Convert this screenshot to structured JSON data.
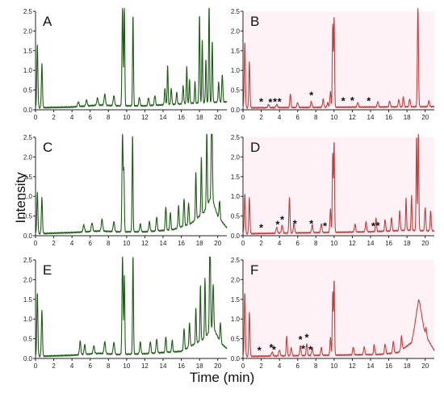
{
  "figure": {
    "ylabel": "Intensity",
    "xlabel": "Time (min)"
  },
  "colors": {
    "green": "#1e5c16",
    "red": "#c04040",
    "axis": "#222222",
    "star": "#111111"
  },
  "chart_data": [
    {
      "panel": "A",
      "type": "line",
      "color": "green",
      "xlim": [
        0,
        21
      ],
      "ylim": [
        0,
        2.5
      ],
      "xticks": [
        "0",
        "2",
        "4",
        "6",
        "8",
        "10",
        "12",
        "14",
        "16",
        "18",
        "20"
      ],
      "yticks": [
        "0.0",
        "0.5",
        "1.0",
        "1.5",
        "2.0",
        "2.5"
      ],
      "baseline": [
        [
          0,
          0.05
        ],
        [
          4,
          0.07
        ],
        [
          7,
          0.12
        ],
        [
          9,
          0.1
        ],
        [
          12,
          0.1
        ],
        [
          16,
          0.15
        ],
        [
          18,
          0.18
        ],
        [
          21,
          0.2
        ]
      ],
      "peaks": [
        [
          0.2,
          1.6,
          0.06
        ],
        [
          0.7,
          1.1,
          0.06
        ],
        [
          4.7,
          0.12,
          0.08
        ],
        [
          5.6,
          0.15,
          0.08
        ],
        [
          6.8,
          0.18,
          0.08
        ],
        [
          7.6,
          0.28,
          0.08
        ],
        [
          8.6,
          0.25,
          0.08
        ],
        [
          9.55,
          2.5,
          0.06
        ],
        [
          9.75,
          2.55,
          0.05
        ],
        [
          10.7,
          2.3,
          0.05
        ],
        [
          11.4,
          0.22,
          0.07
        ],
        [
          12.4,
          0.2,
          0.07
        ],
        [
          13.1,
          0.25,
          0.07
        ],
        [
          14.2,
          0.4,
          0.06
        ],
        [
          14.5,
          1.0,
          0.05
        ],
        [
          14.9,
          0.4,
          0.06
        ],
        [
          15.5,
          0.3,
          0.06
        ],
        [
          16.2,
          0.45,
          0.06
        ],
        [
          16.6,
          0.95,
          0.05
        ],
        [
          16.9,
          0.6,
          0.05
        ],
        [
          17.5,
          0.55,
          0.05
        ],
        [
          18.0,
          2.25,
          0.05
        ],
        [
          18.3,
          1.6,
          0.05
        ],
        [
          18.7,
          1.1,
          0.05
        ],
        [
          19.05,
          2.55,
          0.05
        ],
        [
          19.4,
          1.55,
          0.05
        ],
        [
          20.1,
          0.5,
          0.06
        ],
        [
          20.5,
          0.7,
          0.06
        ]
      ],
      "stars": []
    },
    {
      "panel": "B",
      "type": "line",
      "color": "red",
      "xlim": [
        0,
        21
      ],
      "ylim": [
        0,
        2.5
      ],
      "xticks": [
        "0",
        "2",
        "4",
        "6",
        "8",
        "10",
        "12",
        "14",
        "16",
        "18",
        "20"
      ],
      "yticks": [
        "0.0",
        "0.5",
        "1.0",
        "1.5",
        "2.0",
        "2.5"
      ],
      "baseline": [
        [
          0,
          0.05
        ],
        [
          21,
          0.08
        ]
      ],
      "peaks": [
        [
          0.2,
          1.65,
          0.06
        ],
        [
          0.7,
          1.15,
          0.06
        ],
        [
          2.8,
          0.08,
          0.08
        ],
        [
          3.7,
          0.08,
          0.08
        ],
        [
          5.2,
          0.35,
          0.06
        ],
        [
          6.0,
          0.12,
          0.08
        ],
        [
          7.5,
          0.15,
          0.07
        ],
        [
          8.8,
          0.2,
          0.07
        ],
        [
          9.3,
          0.12,
          0.07
        ],
        [
          9.6,
          0.4,
          0.06
        ],
        [
          9.85,
          2.1,
          0.05
        ],
        [
          10.0,
          2.3,
          0.05
        ],
        [
          12.6,
          0.12,
          0.07
        ],
        [
          14.8,
          0.14,
          0.07
        ],
        [
          16.1,
          0.15,
          0.07
        ],
        [
          17.1,
          0.18,
          0.07
        ],
        [
          17.6,
          0.26,
          0.06
        ],
        [
          18.3,
          0.2,
          0.07
        ],
        [
          19.2,
          2.55,
          0.06
        ],
        [
          20.4,
          0.15,
          0.07
        ]
      ],
      "stars": [
        2.0,
        3.0,
        3.5,
        4.0,
        7.5,
        11.0,
        12.0,
        13.8
      ]
    },
    {
      "panel": "C",
      "type": "line",
      "color": "green",
      "xlim": [
        0,
        21
      ],
      "ylim": [
        0,
        2.5
      ],
      "xticks": [
        "0",
        "2",
        "4",
        "6",
        "8",
        "10",
        "12",
        "14",
        "16",
        "18",
        "20"
      ],
      "yticks": [
        "0.0",
        "0.5",
        "1.0",
        "1.5",
        "2.0",
        "2.5"
      ],
      "baseline": [
        [
          0,
          0.05
        ],
        [
          4,
          0.08
        ],
        [
          7,
          0.12
        ],
        [
          9,
          0.1
        ],
        [
          12,
          0.1
        ],
        [
          15,
          0.15
        ],
        [
          17,
          0.3
        ],
        [
          18.5,
          0.6
        ],
        [
          19.3,
          1.0
        ],
        [
          20,
          0.5
        ],
        [
          21,
          0.2
        ]
      ],
      "peaks": [
        [
          0.2,
          1.05,
          0.06
        ],
        [
          0.7,
          0.9,
          0.06
        ],
        [
          5.3,
          0.18,
          0.08
        ],
        [
          6.2,
          0.22,
          0.08
        ],
        [
          7.3,
          0.3,
          0.08
        ],
        [
          8.6,
          0.25,
          0.08
        ],
        [
          9.55,
          2.5,
          0.06
        ],
        [
          9.7,
          1.5,
          0.05
        ],
        [
          10.65,
          2.45,
          0.05
        ],
        [
          11.5,
          0.2,
          0.07
        ],
        [
          12.5,
          0.25,
          0.07
        ],
        [
          13.3,
          0.35,
          0.07
        ],
        [
          14.3,
          0.6,
          0.06
        ],
        [
          14.8,
          0.45,
          0.06
        ],
        [
          15.7,
          0.55,
          0.06
        ],
        [
          16.3,
          0.7,
          0.06
        ],
        [
          16.8,
          0.55,
          0.06
        ],
        [
          17.6,
          1.2,
          0.05
        ],
        [
          18.2,
          1.45,
          0.05
        ],
        [
          18.8,
          2.0,
          0.05
        ],
        [
          19.35,
          2.55,
          0.06
        ],
        [
          20.2,
          0.45,
          0.06
        ]
      ],
      "stars": []
    },
    {
      "panel": "D",
      "type": "line",
      "color": "red",
      "xlim": [
        0,
        21
      ],
      "ylim": [
        0,
        2.5
      ],
      "xticks": [
        "0",
        "2",
        "4",
        "6",
        "8",
        "10",
        "12",
        "14",
        "16",
        "18",
        "20"
      ],
      "yticks": [
        "0.0",
        "0.5",
        "1.0",
        "1.5",
        "2.0",
        "2.5"
      ],
      "baseline": [
        [
          0,
          0.05
        ],
        [
          14,
          0.1
        ],
        [
          18,
          0.14
        ],
        [
          21,
          0.12
        ]
      ],
      "peaks": [
        [
          0.2,
          1.0,
          0.06
        ],
        [
          0.7,
          0.9,
          0.06
        ],
        [
          3.7,
          0.15,
          0.08
        ],
        [
          4.3,
          0.2,
          0.08
        ],
        [
          5.1,
          0.9,
          0.06
        ],
        [
          5.6,
          0.25,
          0.07
        ],
        [
          7.6,
          0.2,
          0.07
        ],
        [
          8.6,
          0.22,
          0.07
        ],
        [
          9.6,
          0.6,
          0.06
        ],
        [
          9.85,
          2.0,
          0.05
        ],
        [
          10.0,
          2.3,
          0.05
        ],
        [
          12.3,
          0.2,
          0.07
        ],
        [
          13.5,
          0.25,
          0.07
        ],
        [
          14.6,
          0.35,
          0.06
        ],
        [
          15.6,
          0.3,
          0.06
        ],
        [
          16.3,
          0.35,
          0.06
        ],
        [
          17.2,
          0.5,
          0.06
        ],
        [
          17.9,
          0.8,
          0.05
        ],
        [
          18.5,
          0.9,
          0.05
        ],
        [
          19.05,
          2.4,
          0.05
        ],
        [
          19.25,
          2.55,
          0.05
        ],
        [
          20.0,
          0.6,
          0.06
        ],
        [
          20.6,
          0.5,
          0.06
        ]
      ],
      "stars": [
        2.0,
        3.8,
        4.3,
        5.7,
        7.5,
        9.0,
        14.3,
        14.8
      ]
    },
    {
      "panel": "E",
      "type": "line",
      "color": "green",
      "xlim": [
        0,
        21
      ],
      "ylim": [
        0,
        2.5
      ],
      "xticks": [
        "0",
        "2",
        "4",
        "6",
        "8",
        "10",
        "12",
        "14",
        "16",
        "18",
        "20"
      ],
      "yticks": [
        "0.0",
        "0.5",
        "1.0",
        "1.5",
        "2.0",
        "2.5"
      ],
      "baseline": [
        [
          0,
          0.05
        ],
        [
          4,
          0.08
        ],
        [
          7,
          0.13
        ],
        [
          9,
          0.1
        ],
        [
          12,
          0.12
        ],
        [
          16,
          0.18
        ],
        [
          18.5,
          0.5
        ],
        [
          19.5,
          0.8
        ],
        [
          20.3,
          0.4
        ],
        [
          21,
          0.25
        ]
      ],
      "peaks": [
        [
          0.2,
          1.6,
          0.06
        ],
        [
          0.7,
          1.15,
          0.06
        ],
        [
          4.9,
          0.35,
          0.07
        ],
        [
          5.4,
          0.25,
          0.07
        ],
        [
          6.4,
          0.2,
          0.08
        ],
        [
          7.6,
          0.3,
          0.08
        ],
        [
          8.6,
          0.3,
          0.08
        ],
        [
          9.55,
          2.5,
          0.06
        ],
        [
          9.75,
          2.0,
          0.05
        ],
        [
          10.7,
          2.5,
          0.05
        ],
        [
          11.5,
          0.3,
          0.07
        ],
        [
          12.6,
          0.3,
          0.07
        ],
        [
          13.3,
          0.35,
          0.07
        ],
        [
          14.3,
          0.4,
          0.06
        ],
        [
          15.0,
          0.3,
          0.06
        ],
        [
          16.3,
          0.55,
          0.06
        ],
        [
          16.9,
          0.6,
          0.06
        ],
        [
          17.6,
          0.9,
          0.05
        ],
        [
          18.1,
          1.4,
          0.05
        ],
        [
          18.6,
          1.5,
          0.05
        ],
        [
          19.15,
          2.55,
          0.06
        ],
        [
          19.5,
          1.1,
          0.06
        ],
        [
          20.3,
          0.5,
          0.06
        ]
      ],
      "stars": []
    },
    {
      "panel": "F",
      "type": "line",
      "color": "red",
      "xlim": [
        0,
        21
      ],
      "ylim": [
        0,
        2.5
      ],
      "xticks": [
        "0",
        "2",
        "4",
        "6",
        "8",
        "10",
        "12",
        "14",
        "16",
        "18",
        "20"
      ],
      "yticks": [
        "0.0",
        "0.5",
        "1.0",
        "1.5",
        "2.0",
        "2.5"
      ],
      "baseline": [
        [
          0,
          0.05
        ],
        [
          15,
          0.1
        ],
        [
          17,
          0.15
        ],
        [
          18.5,
          0.4
        ],
        [
          19.3,
          1.2
        ],
        [
          20,
          0.6
        ],
        [
          21,
          0.2
        ]
      ],
      "peaks": [
        [
          0.2,
          1.6,
          0.06
        ],
        [
          0.7,
          1.1,
          0.06
        ],
        [
          3.2,
          0.1,
          0.08
        ],
        [
          4.0,
          0.15,
          0.08
        ],
        [
          4.8,
          0.5,
          0.06
        ],
        [
          5.3,
          0.2,
          0.07
        ],
        [
          6.3,
          0.25,
          0.07
        ],
        [
          7.0,
          0.3,
          0.07
        ],
        [
          7.6,
          0.2,
          0.07
        ],
        [
          8.6,
          0.2,
          0.07
        ],
        [
          9.6,
          0.45,
          0.06
        ],
        [
          9.85,
          1.6,
          0.05
        ],
        [
          10.0,
          1.9,
          0.05
        ],
        [
          12.1,
          0.2,
          0.07
        ],
        [
          13.3,
          0.2,
          0.07
        ],
        [
          14.4,
          0.25,
          0.07
        ],
        [
          15.6,
          0.25,
          0.07
        ],
        [
          16.5,
          0.3,
          0.07
        ],
        [
          17.4,
          0.35,
          0.07
        ],
        [
          19.3,
          0.3,
          0.3
        ],
        [
          20.1,
          0.2,
          0.07
        ]
      ],
      "stars": [
        1.8,
        3.1,
        3.4,
        6.3,
        6.6,
        7.0,
        7.4
      ]
    }
  ]
}
